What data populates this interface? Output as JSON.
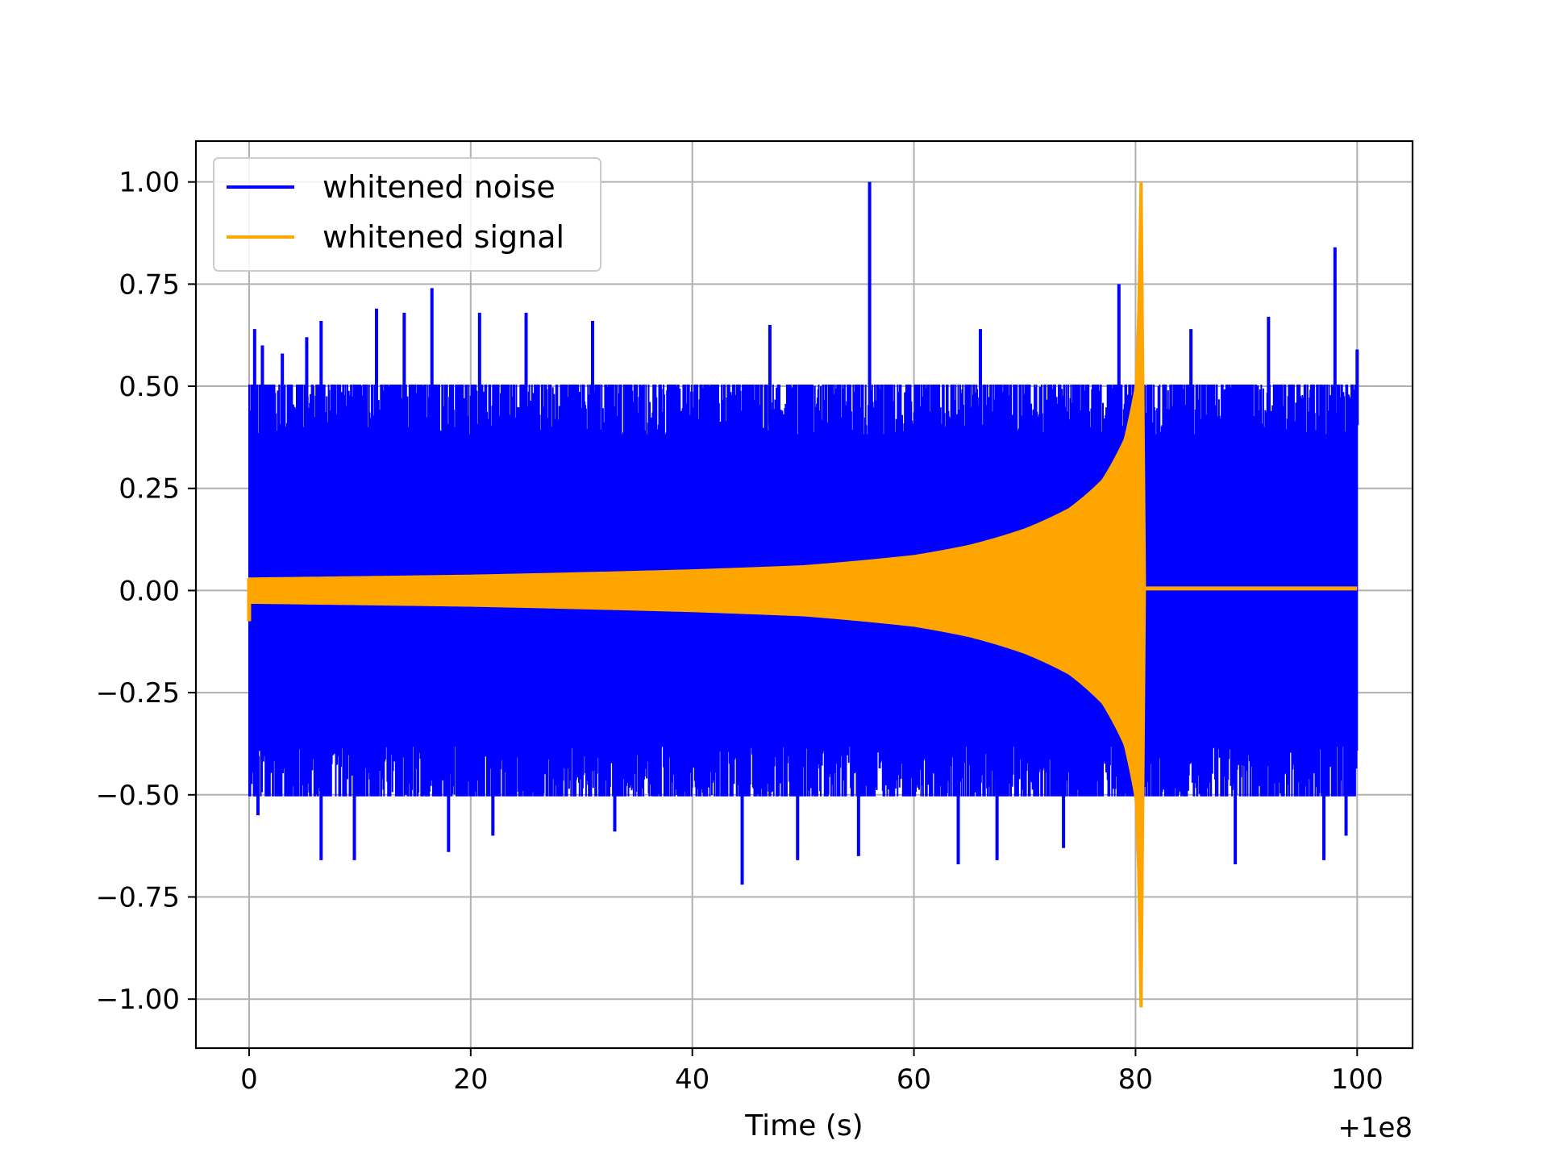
{
  "chart_data": {
    "type": "line",
    "title": "",
    "xlabel": "Time (s)",
    "ylabel": "",
    "x_offset_label": "+1e8",
    "xlim": [
      -4.8,
      105
    ],
    "ylim": [
      -1.12,
      1.1
    ],
    "grid": true,
    "legend_position": "top-left",
    "x_ticks": [
      0,
      20,
      40,
      60,
      80,
      100
    ],
    "x_tick_labels": [
      "0",
      "20",
      "40",
      "60",
      "80",
      "100"
    ],
    "y_ticks": [
      1.0,
      0.75,
      0.5,
      0.25,
      0.0,
      -0.25,
      -0.5,
      -0.75,
      -1.0
    ],
    "y_tick_labels": [
      "1.00",
      "0.75",
      "0.50",
      "0.25",
      "0.00",
      "−0.25",
      "−0.50",
      "−0.75",
      "−1.00"
    ],
    "series": [
      {
        "name": "whitened noise",
        "color": "#0000ff",
        "x_range": [
          0,
          100
        ],
        "typical_amplitude": [
          -0.45,
          0.45
        ],
        "peaks": [
          {
            "x": 0.5,
            "y": 0.64
          },
          {
            "x": 1.2,
            "y": 0.6
          },
          {
            "x": 3.0,
            "y": 0.58
          },
          {
            "x": 5.2,
            "y": 0.62
          },
          {
            "x": 6.5,
            "y": 0.66
          },
          {
            "x": 11.5,
            "y": 0.69
          },
          {
            "x": 14.0,
            "y": 0.68
          },
          {
            "x": 16.5,
            "y": 0.74
          },
          {
            "x": 20.8,
            "y": 0.68
          },
          {
            "x": 25.0,
            "y": 0.68
          },
          {
            "x": 31.0,
            "y": 0.66
          },
          {
            "x": 47.0,
            "y": 0.65
          },
          {
            "x": 56.0,
            "y": 1.0
          },
          {
            "x": 66.0,
            "y": 0.64
          },
          {
            "x": 78.5,
            "y": 0.75
          },
          {
            "x": 85.0,
            "y": 0.64
          },
          {
            "x": 92.0,
            "y": 0.67
          },
          {
            "x": 98.0,
            "y": 0.84
          },
          {
            "x": 100.0,
            "y": 0.59
          }
        ],
        "troughs": [
          {
            "x": 0.8,
            "y": -0.55
          },
          {
            "x": 6.5,
            "y": -0.66
          },
          {
            "x": 9.5,
            "y": -0.66
          },
          {
            "x": 18.0,
            "y": -0.64
          },
          {
            "x": 22.0,
            "y": -0.6
          },
          {
            "x": 33.0,
            "y": -0.59
          },
          {
            "x": 44.5,
            "y": -0.72
          },
          {
            "x": 49.5,
            "y": -0.66
          },
          {
            "x": 55.0,
            "y": -0.65
          },
          {
            "x": 64.0,
            "y": -0.67
          },
          {
            "x": 67.5,
            "y": -0.66
          },
          {
            "x": 73.5,
            "y": -0.63
          },
          {
            "x": 89.0,
            "y": -0.67
          },
          {
            "x": 97.0,
            "y": -0.66
          },
          {
            "x": 99.0,
            "y": -0.6
          }
        ]
      },
      {
        "name": "whitened signal",
        "color": "#ffa500",
        "description_type": "chirp",
        "envelope": [
          {
            "x": 0,
            "y": 0.03
          },
          {
            "x": 20,
            "y": 0.037
          },
          {
            "x": 40,
            "y": 0.05
          },
          {
            "x": 50,
            "y": 0.06
          },
          {
            "x": 60,
            "y": 0.085
          },
          {
            "x": 65,
            "y": 0.11
          },
          {
            "x": 70,
            "y": 0.15
          },
          {
            "x": 74,
            "y": 0.2
          },
          {
            "x": 77,
            "y": 0.27
          },
          {
            "x": 79,
            "y": 0.37
          },
          {
            "x": 80,
            "y": 0.5
          },
          {
            "x": 80.5,
            "y": 1.0
          }
        ],
        "start_dip": {
          "x": 0,
          "y": -0.075
        },
        "merger_time": 80.5,
        "post_merger_level": 0.005,
        "end_x": 100
      }
    ]
  }
}
